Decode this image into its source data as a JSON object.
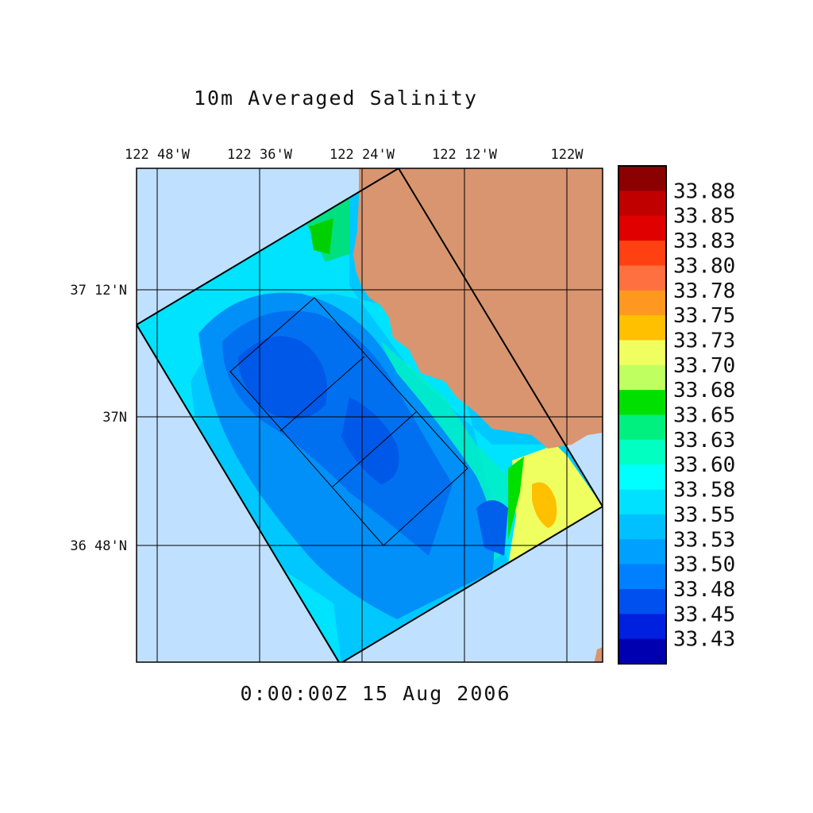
{
  "title": "10m Averaged Salinity",
  "timestamp": "0:00:00Z  15 Aug 2006",
  "lon_labels": [
    "122 48'W",
    "122 36'W",
    "122 24'W",
    "122 12'W",
    "122W"
  ],
  "lat_labels": [
    "37 12'N",
    "37N",
    "36 48'N"
  ],
  "colorbar": {
    "labels": [
      "33.88",
      "33.85",
      "33.83",
      "33.80",
      "33.78",
      "33.75",
      "33.73",
      "33.70",
      "33.68",
      "33.65",
      "33.63",
      "33.60",
      "33.58",
      "33.55",
      "33.53",
      "33.50",
      "33.48",
      "33.45",
      "33.43"
    ],
    "colors": [
      "#8b0000",
      "#c00000",
      "#e00000",
      "#ff4010",
      "#ff7040",
      "#ff9820",
      "#ffc000",
      "#f0ff60",
      "#c0ff60",
      "#00e000",
      "#00f080",
      "#00ffc0",
      "#00ffff",
      "#00e0ff",
      "#00c0ff",
      "#00a0ff",
      "#0080ff",
      "#0050f0",
      "#0020e0",
      "#0000b0"
    ]
  },
  "colors": {
    "ocean_outside": "#c0e0ff",
    "land": "#d9956f"
  }
}
